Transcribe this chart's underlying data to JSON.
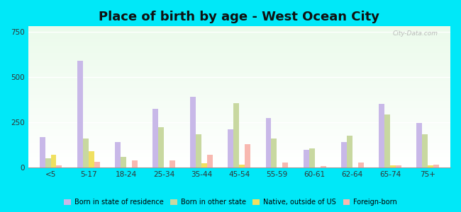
{
  "title": "Place of birth by age - West Ocean City",
  "categories": [
    "<5",
    "5-17",
    "18-24",
    "25-34",
    "35-44",
    "45-54",
    "55-59",
    "60-61",
    "62-64",
    "65-74",
    "75+"
  ],
  "series": {
    "Born in state of residence": [
      170,
      590,
      140,
      325,
      390,
      210,
      275,
      100,
      140,
      350,
      245
    ],
    "Born in other state": [
      50,
      160,
      60,
      225,
      185,
      355,
      160,
      105,
      175,
      295,
      185
    ],
    "Native, outside of US": [
      70,
      90,
      0,
      0,
      25,
      15,
      0,
      0,
      0,
      12,
      12
    ],
    "Foreign-born": [
      12,
      32,
      38,
      38,
      72,
      128,
      28,
      8,
      28,
      12,
      18
    ]
  },
  "colors": {
    "Born in state of residence": "#c8b8e8",
    "Born in other state": "#c8d8a0",
    "Native, outside of US": "#f0e060",
    "Foreign-born": "#f8b8b0"
  },
  "ylim": [
    0,
    780
  ],
  "yticks": [
    0,
    250,
    500,
    750
  ],
  "outer_bg": "#00e8f8",
  "title_fontsize": 13,
  "bar_width": 0.15,
  "watermark": "City-Data.com"
}
